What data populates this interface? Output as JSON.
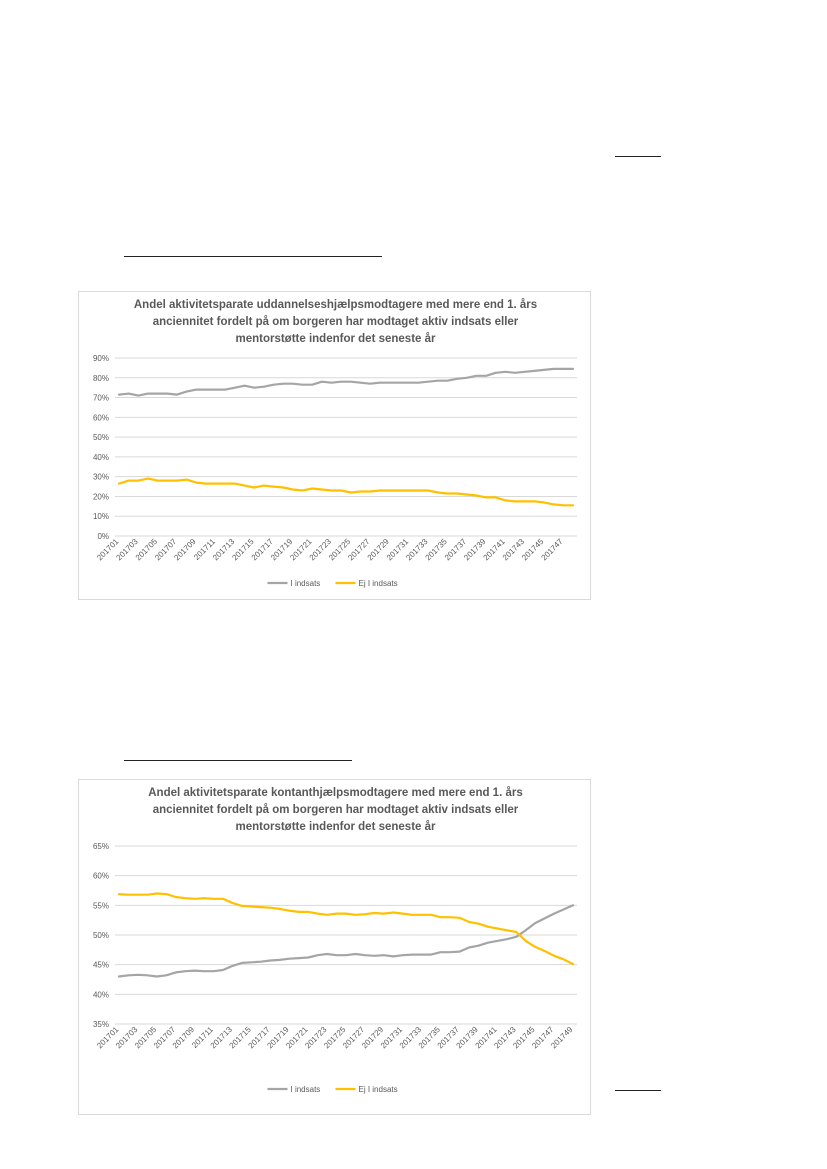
{
  "colors": {
    "grey_series": "#a5a5a5",
    "yellow_series": "#ffc000",
    "grid": "#d9d9d9",
    "text": "#595959"
  },
  "chart_data": [
    {
      "type": "line",
      "title_lines": [
        "Andel aktivitetsparate uddannelseshjælpsmodtagere med mere end 1. års",
        "anciennitet fordelt på om borgeren har modtaget aktiv indsats eller",
        "mentorstøtte indenfor det seneste år"
      ],
      "x": [
        "201701",
        "201702",
        "201703",
        "201704",
        "201705",
        "201706",
        "201707",
        "201708",
        "201709",
        "201710",
        "201711",
        "201712",
        "201713",
        "201714",
        "201715",
        "201716",
        "201717",
        "201718",
        "201719",
        "201720",
        "201721",
        "201722",
        "201723",
        "201724",
        "201725",
        "201726",
        "201727",
        "201728",
        "201729",
        "201730",
        "201731",
        "201732",
        "201733",
        "201734",
        "201735",
        "201736",
        "201737",
        "201738",
        "201739",
        "201740",
        "201741",
        "201742",
        "201743",
        "201744",
        "201745",
        "201746",
        "201747",
        "201748"
      ],
      "x_tick_labels": [
        "201701",
        "201703",
        "201705",
        "201707",
        "201709",
        "201711",
        "201713",
        "201715",
        "201717",
        "201719",
        "201721",
        "201723",
        "201725",
        "201727",
        "201729",
        "201731",
        "201733",
        "201735",
        "201737",
        "201739",
        "201741",
        "201743",
        "201745",
        "201747"
      ],
      "y_ticks": [
        "0%",
        "10%",
        "20%",
        "30%",
        "40%",
        "50%",
        "60%",
        "70%",
        "80%",
        "90%"
      ],
      "ylim": [
        0,
        90
      ],
      "series": [
        {
          "name": "I indsats",
          "color": "#a5a5a5",
          "values": [
            71.5,
            72,
            71,
            72,
            72,
            72,
            71.5,
            73,
            74,
            74,
            74,
            74,
            75,
            76,
            75,
            75.5,
            76.5,
            77,
            77,
            76.5,
            76.5,
            78,
            77.5,
            78,
            78,
            77.5,
            77,
            77.5,
            77.5,
            77.5,
            77.5,
            77.5,
            78,
            78.5,
            78.5,
            79.5,
            80,
            81,
            81,
            82.5,
            83,
            82.5,
            83,
            83.5,
            84,
            84.5,
            84.5,
            84.5
          ]
        },
        {
          "name": "Ej I indsats",
          "color": "#ffc000",
          "values": [
            26.5,
            28,
            28,
            29,
            28,
            28,
            28,
            28.5,
            27,
            26.5,
            26.5,
            26.5,
            26.5,
            25.5,
            24.5,
            25.5,
            25,
            24.5,
            23.5,
            23,
            24,
            23.5,
            23,
            23,
            22,
            22.5,
            22.5,
            23,
            23,
            23,
            23,
            23,
            23,
            22,
            21.5,
            21.5,
            21,
            20.5,
            19.5,
            19.5,
            18,
            17.5,
            17.5,
            17.5,
            17,
            16,
            15.5,
            15.5
          ]
        }
      ]
    },
    {
      "type": "line",
      "title_lines": [
        "Andel aktivitetsparate kontanthjælpsmodtagere med mere end 1. års",
        "anciennitet fordelt på om borgeren har modtaget aktiv indsats eller",
        "mentorstøtte indenfor det seneste år"
      ],
      "x": [
        "201701",
        "201702",
        "201703",
        "201704",
        "201705",
        "201706",
        "201707",
        "201708",
        "201709",
        "201710",
        "201711",
        "201712",
        "201713",
        "201714",
        "201715",
        "201716",
        "201717",
        "201718",
        "201719",
        "201720",
        "201721",
        "201722",
        "201723",
        "201724",
        "201725",
        "201726",
        "201727",
        "201728",
        "201729",
        "201730",
        "201731",
        "201732",
        "201733",
        "201734",
        "201735",
        "201736",
        "201737",
        "201738",
        "201739",
        "201740",
        "201741",
        "201742",
        "201743",
        "201744",
        "201745",
        "201746",
        "201747",
        "201748",
        "201749"
      ],
      "x_tick_labels": [
        "201701",
        "201703",
        "201705",
        "201707",
        "201709",
        "201711",
        "201713",
        "201715",
        "201717",
        "201719",
        "201721",
        "201723",
        "201725",
        "201727",
        "201729",
        "201731",
        "201733",
        "201735",
        "201737",
        "201739",
        "201741",
        "201743",
        "201745",
        "201747",
        "201749"
      ],
      "y_ticks": [
        "35%",
        "40%",
        "45%",
        "50%",
        "55%",
        "60%",
        "65%"
      ],
      "ylim": [
        35,
        65
      ],
      "series": [
        {
          "name": "I indsats",
          "color": "#a5a5a5",
          "values": [
            43,
            43.2,
            43.3,
            43.2,
            43,
            43.2,
            43.7,
            43.9,
            44,
            43.9,
            43.9,
            44.1,
            44.8,
            45.3,
            45.4,
            45.5,
            45.7,
            45.8,
            46,
            46.1,
            46.2,
            46.6,
            46.8,
            46.6,
            46.6,
            46.8,
            46.6,
            46.5,
            46.6,
            46.4,
            46.6,
            46.7,
            46.7,
            46.7,
            47.1,
            47.1,
            47.2,
            47.9,
            48.2,
            48.7,
            49,
            49.3,
            49.7,
            50.8,
            52,
            52.8,
            53.6,
            54.3,
            55
          ]
        },
        {
          "name": "Ej I indsats",
          "color": "#ffc000",
          "values": [
            56.9,
            56.8,
            56.8,
            56.8,
            57,
            56.9,
            56.4,
            56.2,
            56.1,
            56.2,
            56.1,
            56.1,
            55.4,
            54.9,
            54.8,
            54.7,
            54.6,
            54.4,
            54.1,
            53.9,
            53.9,
            53.6,
            53.4,
            53.6,
            53.6,
            53.4,
            53.5,
            53.7,
            53.6,
            53.8,
            53.6,
            53.4,
            53.4,
            53.4,
            53,
            53,
            52.9,
            52.2,
            51.9,
            51.4,
            51.1,
            50.8,
            50.5,
            49,
            48,
            47.3,
            46.5,
            45.9,
            45.1
          ]
        }
      ]
    }
  ]
}
